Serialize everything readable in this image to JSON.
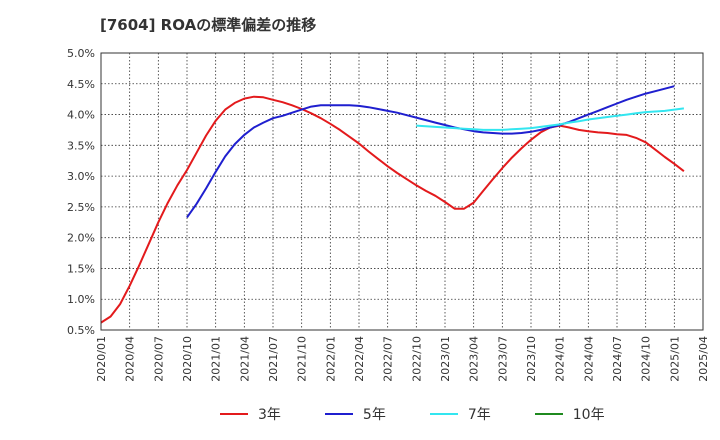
{
  "title": "[7604]  ROAの標準偏差の推移",
  "colors": {
    "s3": "#e31a1c",
    "s5": "#1f1fcf",
    "s7": "#33e6f0",
    "s10": "#1f8a1f",
    "grid": "#333333",
    "axis": "#333333"
  },
  "chart_data": {
    "type": "line",
    "title": "[7604]  ROAの標準偏差の推移",
    "xlabel": "",
    "ylabel": "",
    "ylim": [
      0.5,
      5.0
    ],
    "xlim": [
      "2020-01",
      "2025-04"
    ],
    "grid": true,
    "legend_position": "bottom",
    "x_ticks": [
      "2020/01",
      "2020/04",
      "2020/07",
      "2020/10",
      "2021/01",
      "2021/04",
      "2021/07",
      "2021/10",
      "2022/01",
      "2022/04",
      "2022/07",
      "2022/10",
      "2023/01",
      "2023/04",
      "2023/07",
      "2023/10",
      "2024/01",
      "2024/04",
      "2024/07",
      "2024/10",
      "2025/01",
      "2025/04"
    ],
    "y_ticks": [
      "0.5%",
      "1.0%",
      "1.5%",
      "2.0%",
      "2.5%",
      "3.0%",
      "3.5%",
      "4.0%",
      "4.5%",
      "5.0%"
    ],
    "series": [
      {
        "name": "3年",
        "color_key": "s3",
        "points": [
          [
            "2020-01",
            0.62
          ],
          [
            "2020-02",
            0.72
          ],
          [
            "2020-03",
            0.92
          ],
          [
            "2020-04",
            1.22
          ],
          [
            "2020-05",
            1.55
          ],
          [
            "2020-06",
            1.9
          ],
          [
            "2020-07",
            2.25
          ],
          [
            "2020-08",
            2.57
          ],
          [
            "2020-09",
            2.85
          ],
          [
            "2020-10",
            3.1
          ],
          [
            "2020-11",
            3.38
          ],
          [
            "2020-12",
            3.66
          ],
          [
            "2021-01",
            3.9
          ],
          [
            "2021-02",
            4.08
          ],
          [
            "2021-03",
            4.19
          ],
          [
            "2021-04",
            4.26
          ],
          [
            "2021-05",
            4.29
          ],
          [
            "2021-06",
            4.28
          ],
          [
            "2021-07",
            4.24
          ],
          [
            "2021-08",
            4.2
          ],
          [
            "2021-09",
            4.15
          ],
          [
            "2021-10",
            4.09
          ],
          [
            "2021-11",
            4.02
          ],
          [
            "2021-12",
            3.94
          ],
          [
            "2022-01",
            3.85
          ],
          [
            "2022-02",
            3.75
          ],
          [
            "2022-03",
            3.64
          ],
          [
            "2022-04",
            3.53
          ],
          [
            "2022-05",
            3.4
          ],
          [
            "2022-06",
            3.28
          ],
          [
            "2022-07",
            3.16
          ],
          [
            "2022-08",
            3.05
          ],
          [
            "2022-09",
            2.95
          ],
          [
            "2022-10",
            2.85
          ],
          [
            "2022-11",
            2.76
          ],
          [
            "2022-12",
            2.68
          ],
          [
            "2023-01",
            2.58
          ],
          [
            "2023-02",
            2.47
          ],
          [
            "2023-03",
            2.47
          ],
          [
            "2023-04",
            2.57
          ],
          [
            "2023-05",
            2.76
          ],
          [
            "2023-06",
            2.95
          ],
          [
            "2023-07",
            3.13
          ],
          [
            "2023-08",
            3.3
          ],
          [
            "2023-09",
            3.45
          ],
          [
            "2023-10",
            3.59
          ],
          [
            "2023-11",
            3.71
          ],
          [
            "2023-12",
            3.79
          ],
          [
            "2024-01",
            3.82
          ],
          [
            "2024-02",
            3.79
          ],
          [
            "2024-03",
            3.75
          ],
          [
            "2024-04",
            3.73
          ],
          [
            "2024-05",
            3.71
          ],
          [
            "2024-06",
            3.7
          ],
          [
            "2024-07",
            3.68
          ],
          [
            "2024-08",
            3.67
          ],
          [
            "2024-09",
            3.62
          ],
          [
            "2024-10",
            3.55
          ],
          [
            "2024-11",
            3.43
          ],
          [
            "2024-12",
            3.31
          ],
          [
            "2025-01",
            3.2
          ],
          [
            "2025-02",
            3.08
          ]
        ]
      },
      {
        "name": "5年",
        "color_key": "s5",
        "points": [
          [
            "2020-10",
            2.33
          ],
          [
            "2020-11",
            2.55
          ],
          [
            "2020-12",
            2.8
          ],
          [
            "2021-01",
            3.07
          ],
          [
            "2021-02",
            3.32
          ],
          [
            "2021-03",
            3.52
          ],
          [
            "2021-04",
            3.67
          ],
          [
            "2021-05",
            3.79
          ],
          [
            "2021-06",
            3.87
          ],
          [
            "2021-07",
            3.94
          ],
          [
            "2021-08",
            3.98
          ],
          [
            "2021-09",
            4.03
          ],
          [
            "2021-10",
            4.08
          ],
          [
            "2021-11",
            4.13
          ],
          [
            "2021-12",
            4.15
          ],
          [
            "2022-01",
            4.15
          ],
          [
            "2022-02",
            4.15
          ],
          [
            "2022-03",
            4.15
          ],
          [
            "2022-04",
            4.14
          ],
          [
            "2022-05",
            4.12
          ],
          [
            "2022-06",
            4.09
          ],
          [
            "2022-07",
            4.06
          ],
          [
            "2022-08",
            4.03
          ],
          [
            "2022-09",
            3.99
          ],
          [
            "2022-10",
            3.95
          ],
          [
            "2022-11",
            3.91
          ],
          [
            "2022-12",
            3.87
          ],
          [
            "2023-01",
            3.83
          ],
          [
            "2023-02",
            3.79
          ],
          [
            "2023-03",
            3.76
          ],
          [
            "2023-04",
            3.73
          ],
          [
            "2023-05",
            3.71
          ],
          [
            "2023-06",
            3.7
          ],
          [
            "2023-07",
            3.69
          ],
          [
            "2023-08",
            3.69
          ],
          [
            "2023-09",
            3.7
          ],
          [
            "2023-10",
            3.72
          ],
          [
            "2023-11",
            3.75
          ],
          [
            "2023-12",
            3.79
          ],
          [
            "2024-01",
            3.83
          ],
          [
            "2024-02",
            3.88
          ],
          [
            "2024-03",
            3.94
          ],
          [
            "2024-04",
            4.0
          ],
          [
            "2024-05",
            4.06
          ],
          [
            "2024-06",
            4.12
          ],
          [
            "2024-07",
            4.18
          ],
          [
            "2024-08",
            4.24
          ],
          [
            "2024-09",
            4.29
          ],
          [
            "2024-10",
            4.34
          ],
          [
            "2024-11",
            4.38
          ],
          [
            "2024-12",
            4.42
          ],
          [
            "2025-01",
            4.46
          ]
        ]
      },
      {
        "name": "7年",
        "color_key": "s7",
        "points": [
          [
            "2022-10",
            3.82
          ],
          [
            "2022-11",
            3.81
          ],
          [
            "2022-12",
            3.8
          ],
          [
            "2023-01",
            3.79
          ],
          [
            "2023-02",
            3.78
          ],
          [
            "2023-03",
            3.77
          ],
          [
            "2023-04",
            3.76
          ],
          [
            "2023-05",
            3.75
          ],
          [
            "2023-06",
            3.75
          ],
          [
            "2023-07",
            3.75
          ],
          [
            "2023-08",
            3.76
          ],
          [
            "2023-09",
            3.77
          ],
          [
            "2023-10",
            3.78
          ],
          [
            "2023-11",
            3.8
          ],
          [
            "2023-12",
            3.82
          ],
          [
            "2024-01",
            3.84
          ],
          [
            "2024-02",
            3.87
          ],
          [
            "2024-03",
            3.89
          ],
          [
            "2024-04",
            3.92
          ],
          [
            "2024-05",
            3.94
          ],
          [
            "2024-06",
            3.96
          ],
          [
            "2024-07",
            3.98
          ],
          [
            "2024-08",
            4.0
          ],
          [
            "2024-09",
            4.02
          ],
          [
            "2024-10",
            4.04
          ],
          [
            "2024-11",
            4.05
          ],
          [
            "2024-12",
            4.06
          ],
          [
            "2025-01",
            4.08
          ],
          [
            "2025-02",
            4.1
          ]
        ]
      },
      {
        "name": "10年",
        "color_key": "s10",
        "points": []
      }
    ]
  }
}
